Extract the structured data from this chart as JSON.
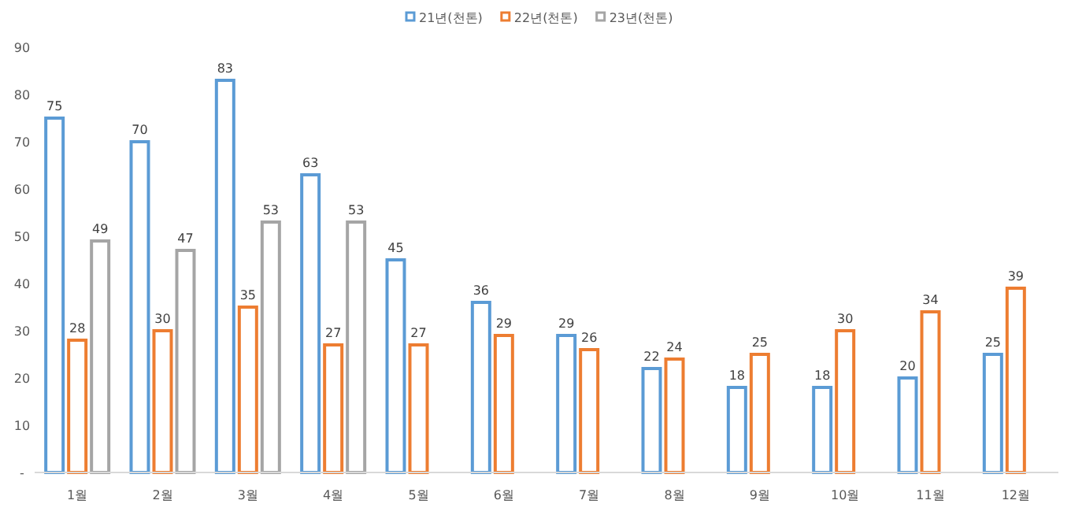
{
  "chart_data": {
    "type": "bar",
    "categories": [
      "1월",
      "2월",
      "3월",
      "4월",
      "5월",
      "6월",
      "7월",
      "8월",
      "9월",
      "10월",
      "11월",
      "12월"
    ],
    "series": [
      {
        "name": "21년(천톤)",
        "color": "#5b9bd5",
        "values": [
          75,
          70,
          83,
          63,
          45,
          36,
          29,
          22,
          18,
          18,
          20,
          25
        ]
      },
      {
        "name": "22년(천톤)",
        "color": "#ed7d31",
        "values": [
          28,
          30,
          35,
          27,
          27,
          29,
          26,
          24,
          25,
          30,
          34,
          39
        ]
      },
      {
        "name": "23년(천톤)",
        "color": "#a5a5a5",
        "values": [
          49,
          47,
          53,
          53,
          null,
          null,
          null,
          null,
          null,
          null,
          null,
          null
        ]
      }
    ],
    "ylim": [
      0,
      90
    ],
    "yticks": [
      {
        "value": 0,
        "label": "-"
      },
      10,
      20,
      30,
      40,
      50,
      60,
      70,
      80,
      90
    ],
    "data_labels": true,
    "legend": "top",
    "grid": false
  }
}
